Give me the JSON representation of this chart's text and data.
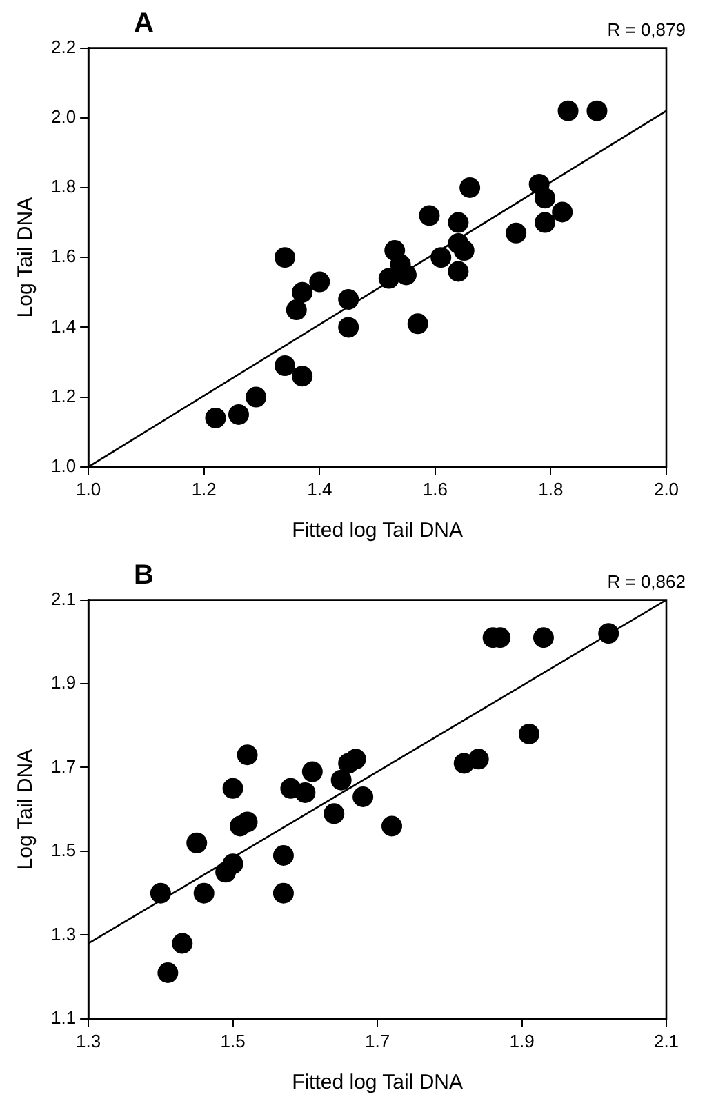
{
  "chart_data": [
    {
      "type": "scatter",
      "title": "A",
      "annotations": [
        "R = 0,879"
      ],
      "xlabel": "Fitted log Tail DNA",
      "ylabel": "Log Tail DNA",
      "marker": "circle",
      "grid": false,
      "legend": false,
      "xlim": [
        1.0,
        2.0
      ],
      "xticks": [
        {
          "value": 1,
          "label": "1.0"
        },
        {
          "value": 1.2,
          "label": "1.2"
        },
        {
          "value": 1.4,
          "label": "1.4"
        },
        {
          "value": 1.6,
          "label": "1.6"
        },
        {
          "value": 1.8,
          "label": "1.8"
        },
        {
          "value": 2,
          "label": "2.0"
        }
      ],
      "ylim": [
        1.0,
        2.2
      ],
      "yticks": [
        {
          "value": 1,
          "label": "1.0"
        },
        {
          "value": 1.2,
          "label": "1.2"
        },
        {
          "value": 1.4,
          "label": "1.4"
        },
        {
          "value": 1.6,
          "label": "1.6"
        },
        {
          "value": 1.8,
          "label": "1.8"
        },
        {
          "value": 2,
          "label": "2.0"
        },
        {
          "value": 2.2,
          "label": "2.2"
        }
      ],
      "series": [
        {
          "color": "#000000",
          "x": [
            1.22,
            1.26,
            1.29,
            1.34,
            1.34,
            1.36,
            1.37,
            1.37,
            1.4,
            1.45,
            1.45,
            1.52,
            1.53,
            1.54,
            1.55,
            1.57,
            1.59,
            1.61,
            1.64,
            1.64,
            1.64,
            1.65,
            1.66,
            1.74,
            1.78,
            1.79,
            1.79,
            1.82,
            1.83,
            1.88
          ],
          "values": [
            1.14,
            1.15,
            1.2,
            1.29,
            1.6,
            1.45,
            1.5,
            1.26,
            1.53,
            1.48,
            1.4,
            1.54,
            1.62,
            1.58,
            1.55,
            1.41,
            1.72,
            1.6,
            1.7,
            1.64,
            1.56,
            1.62,
            1.8,
            1.67,
            1.81,
            1.77,
            1.7,
            1.73,
            2.02,
            2.02
          ]
        },
        {
          "type": "line",
          "color": "#000000",
          "marker": "none",
          "x": [
            1.0,
            2.0
          ],
          "values": [
            1.0,
            2.02
          ]
        }
      ]
    },
    {
      "type": "scatter",
      "title": "B",
      "annotations": [
        "R = 0,862"
      ],
      "xlabel": "Fitted log Tail DNA",
      "ylabel": "Log Tail DNA",
      "marker": "circle",
      "grid": false,
      "legend": false,
      "xlim": [
        1.3,
        2.1
      ],
      "xticks": [
        1.3,
        1.5,
        1.7,
        1.9,
        2.1
      ],
      "ylim": [
        1.1,
        2.1
      ],
      "yticks": [
        1.1,
        1.3,
        1.5,
        1.7,
        1.9,
        2.1
      ],
      "series": [
        {
          "color": "#000000",
          "x": [
            1.4,
            1.41,
            1.43,
            1.45,
            1.46,
            1.49,
            1.5,
            1.5,
            1.51,
            1.52,
            1.52,
            1.57,
            1.57,
            1.58,
            1.6,
            1.61,
            1.64,
            1.65,
            1.66,
            1.67,
            1.68,
            1.72,
            1.82,
            1.84,
            1.86,
            1.87,
            1.91,
            1.93,
            2.02
          ],
          "values": [
            1.4,
            1.21,
            1.28,
            1.52,
            1.4,
            1.45,
            1.47,
            1.65,
            1.56,
            1.57,
            1.73,
            1.49,
            1.4,
            1.65,
            1.64,
            1.69,
            1.59,
            1.67,
            1.71,
            1.72,
            1.63,
            1.56,
            1.71,
            1.72,
            2.01,
            2.01,
            1.78,
            2.01,
            2.02
          ]
        },
        {
          "type": "line",
          "color": "#000000",
          "marker": "none",
          "x": [
            1.3,
            2.1
          ],
          "values": [
            1.28,
            2.1
          ]
        }
      ]
    }
  ]
}
